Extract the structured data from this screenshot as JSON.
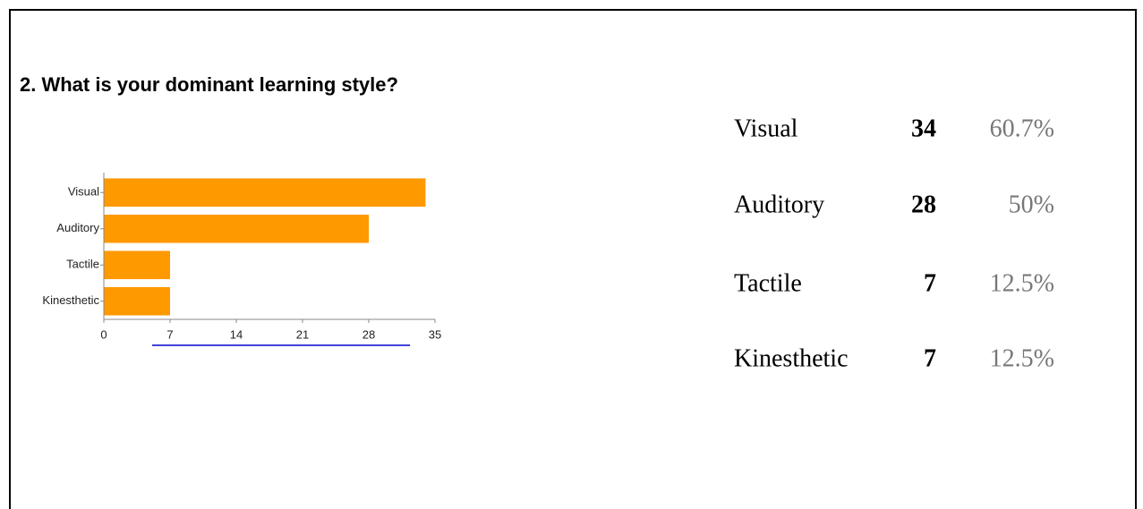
{
  "question": "2. What is your dominant learning style?",
  "chart_data": {
    "type": "bar",
    "orientation": "horizontal",
    "categories": [
      "Visual",
      "Auditory",
      "Tactile",
      "Kinesthetic"
    ],
    "values": [
      34,
      28,
      7,
      7
    ],
    "color": "#ff9900",
    "xlim": [
      0,
      35
    ],
    "xticks": [
      0,
      7,
      14,
      21,
      28,
      35
    ]
  },
  "table": {
    "rows": [
      {
        "label": "Visual",
        "count": 34,
        "percent": "60.7%"
      },
      {
        "label": "Auditory",
        "count": 28,
        "percent": "50%"
      },
      {
        "label": "Tactile",
        "count": 7,
        "percent": "12.5%"
      },
      {
        "label": "Kinesthetic",
        "count": 7,
        "percent": "12.5%"
      }
    ]
  }
}
